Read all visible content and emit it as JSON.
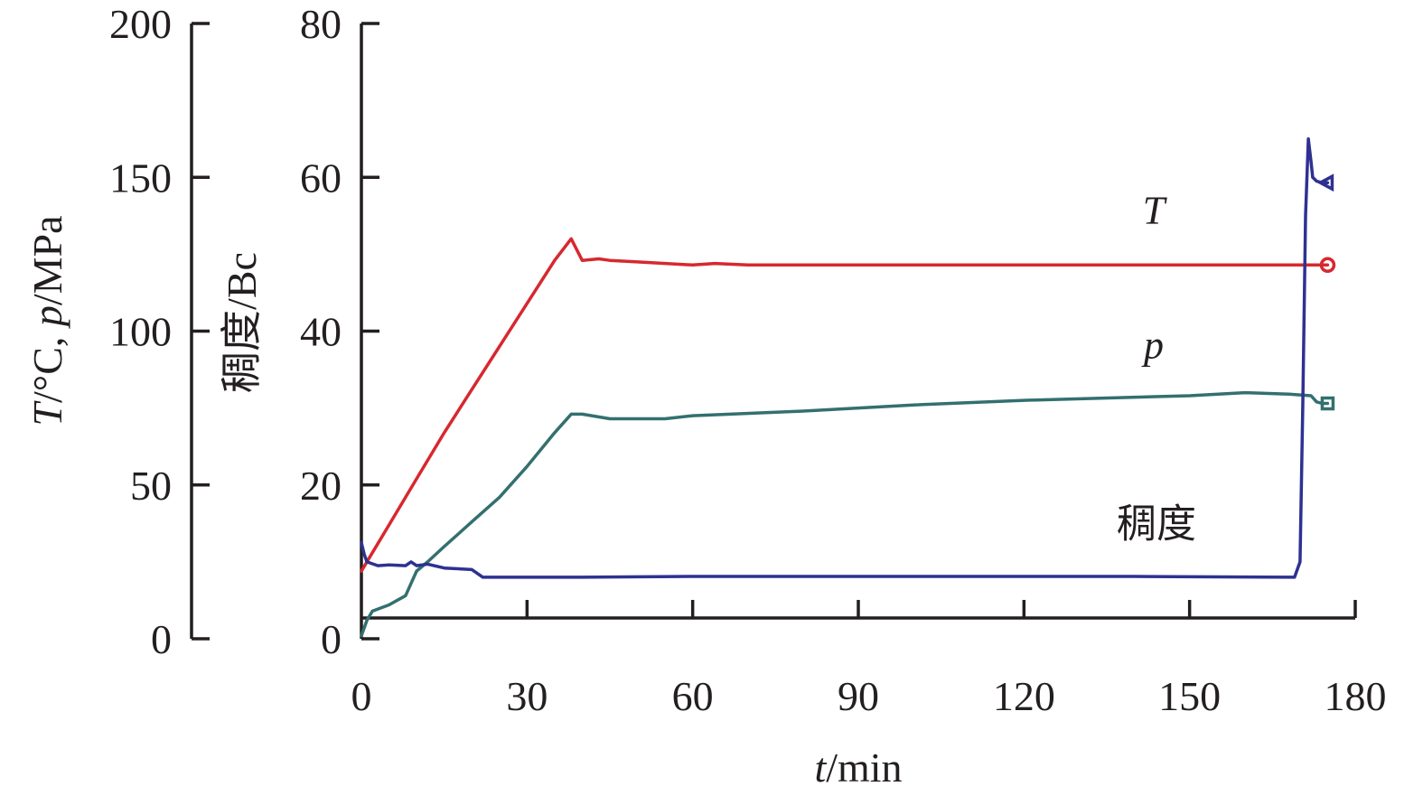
{
  "chart_data": {
    "type": "line",
    "x_axis": {
      "label_italic": "t",
      "label_rest": "/min",
      "range": [
        0,
        180
      ],
      "ticks": [
        0,
        30,
        60,
        90,
        120,
        150,
        180
      ]
    },
    "y_axis_left": {
      "label_T": "T",
      "label_T_unit": "/°C, ",
      "label_p": "p",
      "label_p_unit": "/MPa",
      "range": [
        0,
        200
      ],
      "ticks": [
        0,
        50,
        100,
        150,
        200
      ]
    },
    "y_axis_right": {
      "label": "稠度/Bc",
      "range": [
        0,
        80
      ],
      "ticks": [
        0,
        20,
        40,
        60,
        80
      ]
    },
    "series": [
      {
        "name": "T",
        "label_italic": true,
        "axis": "left",
        "color": "#d7282f",
        "marker": "circle",
        "points": [
          [
            0,
            22
          ],
          [
            2,
            28
          ],
          [
            5,
            37
          ],
          [
            10,
            52
          ],
          [
            15,
            67
          ],
          [
            20,
            81
          ],
          [
            25,
            95
          ],
          [
            30,
            109
          ],
          [
            35,
            123
          ],
          [
            38,
            130
          ],
          [
            40,
            123
          ],
          [
            43,
            123.5
          ],
          [
            45,
            123
          ],
          [
            50,
            122.5
          ],
          [
            60,
            121.5
          ],
          [
            64,
            122
          ],
          [
            70,
            121.5
          ],
          [
            100,
            121.5
          ],
          [
            135,
            121.5
          ],
          [
            150,
            121.5
          ],
          [
            170,
            121.5
          ],
          [
            175,
            121.5
          ]
        ]
      },
      {
        "name": "p",
        "label_italic": true,
        "axis": "left",
        "color": "#33706f",
        "marker": "square",
        "points": [
          [
            0,
            1
          ],
          [
            1,
            6
          ],
          [
            2,
            9
          ],
          [
            5,
            11
          ],
          [
            8,
            14
          ],
          [
            9,
            18
          ],
          [
            10,
            22
          ],
          [
            12,
            25
          ],
          [
            15,
            30
          ],
          [
            20,
            38
          ],
          [
            25,
            46
          ],
          [
            30,
            56
          ],
          [
            35,
            67
          ],
          [
            38,
            73
          ],
          [
            40,
            73
          ],
          [
            45,
            71.5
          ],
          [
            55,
            71.5
          ],
          [
            60,
            72.5
          ],
          [
            80,
            74
          ],
          [
            100,
            76
          ],
          [
            120,
            77.5
          ],
          [
            150,
            79
          ],
          [
            160,
            80
          ],
          [
            168,
            79.5
          ],
          [
            172,
            79
          ],
          [
            173,
            77
          ],
          [
            174,
            76.5
          ],
          [
            175,
            76.5
          ]
        ]
      },
      {
        "name": "稠度",
        "label_italic": false,
        "axis": "right",
        "color": "#2e3192",
        "marker": "triangle",
        "points": [
          [
            0,
            12.5
          ],
          [
            0.5,
            11
          ],
          [
            1,
            10
          ],
          [
            3,
            9.5
          ],
          [
            5,
            9.6
          ],
          [
            8,
            9.5
          ],
          [
            9,
            10
          ],
          [
            10,
            9.5
          ],
          [
            12,
            9.7
          ],
          [
            15,
            9.2
          ],
          [
            20,
            9
          ],
          [
            22,
            8
          ],
          [
            30,
            8
          ],
          [
            40,
            8
          ],
          [
            60,
            8.1
          ],
          [
            100,
            8.1
          ],
          [
            140,
            8.1
          ],
          [
            169,
            8
          ],
          [
            170,
            10
          ],
          [
            170.5,
            30
          ],
          [
            171,
            55
          ],
          [
            171.5,
            65
          ],
          [
            172,
            62
          ],
          [
            172.3,
            60
          ],
          [
            173,
            59.5
          ],
          [
            174,
            59.3
          ],
          [
            175,
            59.3
          ]
        ]
      }
    ],
    "annotations": [
      {
        "text": "T",
        "italic": true,
        "x": 143.5,
        "y": 54,
        "axis": "right"
      },
      {
        "text": "p",
        "italic": true,
        "x": 143.5,
        "y": 36.5,
        "axis": "right"
      },
      {
        "text": "稠度",
        "italic": false,
        "x": 144,
        "y": 13.2,
        "axis": "right"
      }
    ]
  }
}
